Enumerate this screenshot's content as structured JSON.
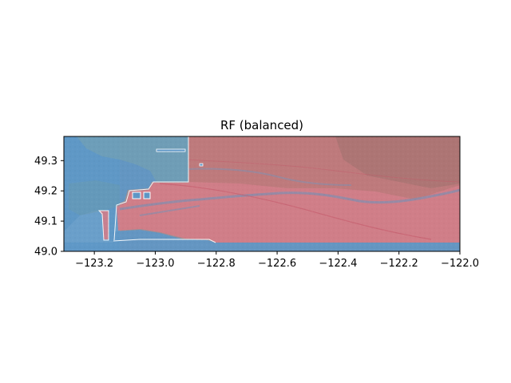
{
  "title": "RF (balanced)",
  "x_ticks": [
    "−123.2",
    "−123.0",
    "−122.8",
    "−122.6",
    "−122.4",
    "−122.2",
    "−122.0"
  ],
  "y_ticks": [
    "49.0",
    "49.1",
    "49.2",
    "49.3"
  ],
  "map": {
    "xlim": [
      -123.3,
      -122.0
    ],
    "ylim": [
      49.0,
      49.38
    ],
    "basemap_colors": {
      "water": "#6a9fca",
      "land_west": "#7ea6b8",
      "land_east": "#b07f7a"
    },
    "overlay_colors": {
      "class_low": "#5d95c4",
      "class_high": "#d97b86"
    }
  }
}
